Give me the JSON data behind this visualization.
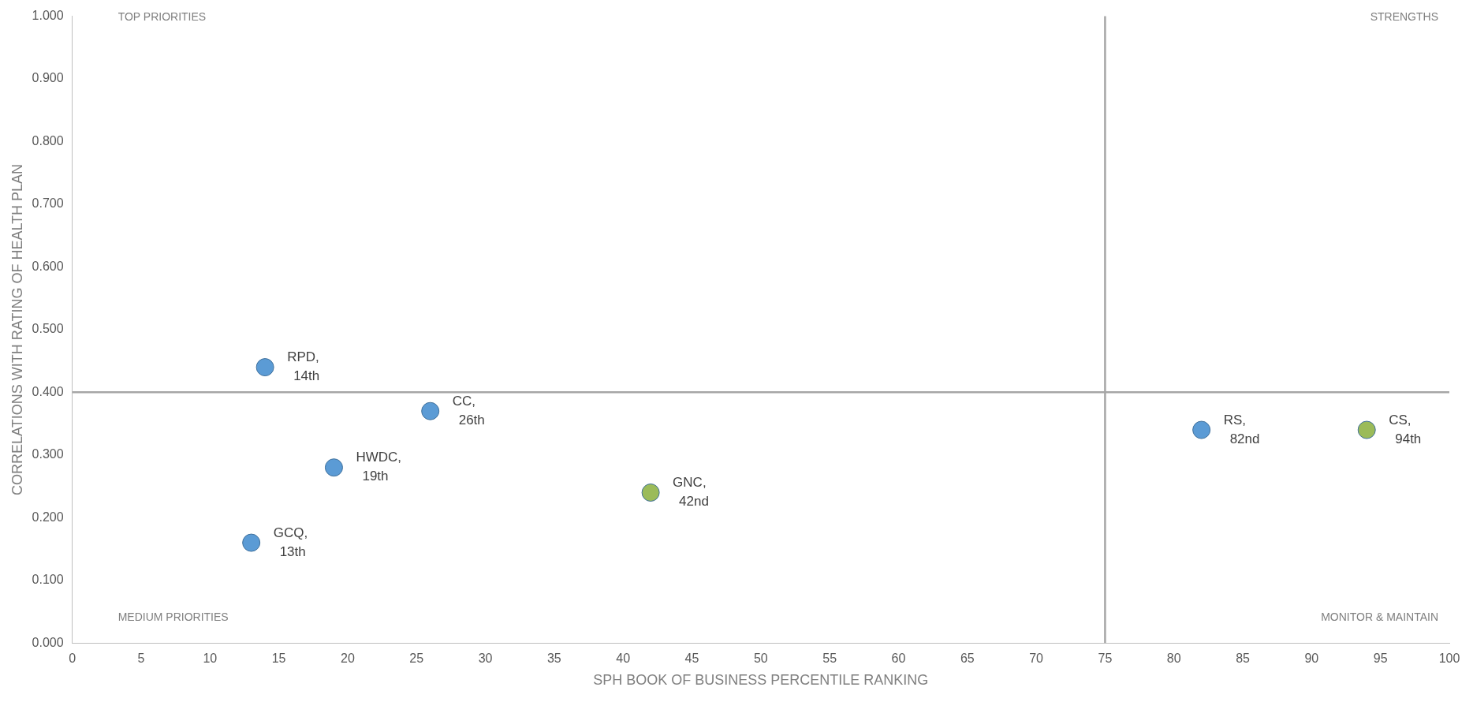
{
  "chart_data": {
    "type": "scatter",
    "xlabel": "SPH BOOK OF BUSINESS PERCENTILE RANKING",
    "ylabel": "CORRELATIONS WITH RATING OF HEALTH PLAN",
    "series": [
      {
        "color": "#5b9bd5",
        "x": [
          14,
          26,
          19,
          13,
          82
        ],
        "values": [
          0.44,
          0.37,
          0.28,
          0.16,
          0.34
        ]
      },
      {
        "color": "#9bbb59",
        "x": [
          42,
          94
        ],
        "values": [
          0.24,
          0.34
        ]
      }
    ],
    "xlim": [
      0,
      100
    ],
    "xticks": [
      0,
      5,
      10,
      15,
      20,
      25,
      30,
      35,
      40,
      45,
      50,
      55,
      60,
      65,
      70,
      75,
      80,
      85,
      90,
      95,
      100
    ],
    "ylim": [
      0,
      1
    ],
    "yticks": [
      {
        "value": 0,
        "label": "0.000"
      },
      {
        "value": 0.1,
        "label": "0.100"
      },
      {
        "value": 0.2,
        "label": "0.200"
      },
      {
        "value": 0.3,
        "label": "0.300"
      },
      {
        "value": 0.4,
        "label": "0.400"
      },
      {
        "value": 0.5,
        "label": "0.500"
      },
      {
        "value": 0.6,
        "label": "0.600"
      },
      {
        "value": 0.7,
        "label": "0.700"
      },
      {
        "value": 0.8,
        "label": "0.800"
      },
      {
        "value": 0.9,
        "label": "0.900"
      },
      {
        "value": 1,
        "label": "1.000"
      }
    ],
    "ref_lines": [
      {
        "axis": "x",
        "value": 75,
        "color": "#a6a6a6"
      },
      {
        "axis": "y",
        "value": 0.4,
        "color": "#a6a6a6"
      }
    ],
    "annotations": [
      "TOP PRIORITIES",
      "STRENGTHS",
      "MEDIUM PRIORITIES",
      "MONITOR & MAINTAIN",
      {
        "text": "RPD,\n14th",
        "x": 14,
        "y": 0.44
      },
      {
        "text": "CC,\n26th",
        "x": 26,
        "y": 0.37
      },
      {
        "text": "HWDC,\n19th",
        "x": 19,
        "y": 0.28
      },
      {
        "text": "GCQ,\n13th",
        "x": 13,
        "y": 0.16
      },
      {
        "text": "RS,\n82nd",
        "x": 82,
        "y": 0.34
      },
      {
        "text": "GNC,\n42nd",
        "x": 42,
        "y": 0.24
      },
      {
        "text": "CS,\n94th",
        "x": 94,
        "y": 0.34
      }
    ],
    "marker": "circle",
    "grid": false,
    "legend": false
  }
}
